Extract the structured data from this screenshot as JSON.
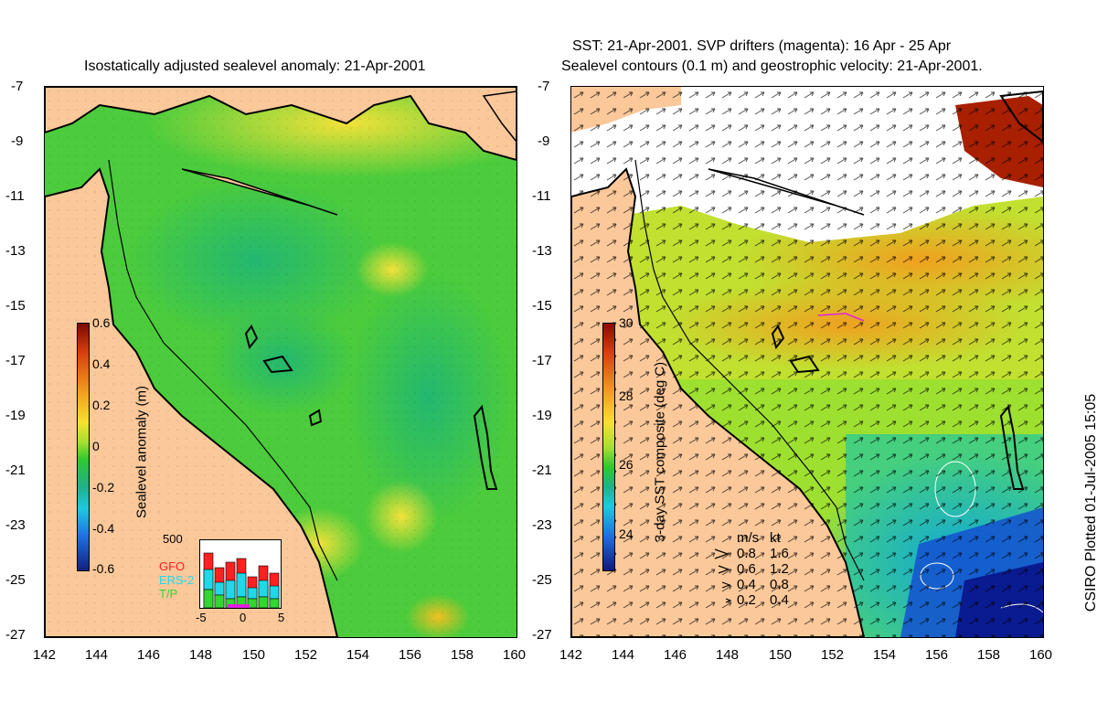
{
  "left_panel": {
    "title": "Isostatically adjusted sealevel anomaly: 21-Apr-2001",
    "y_ticks": [
      "-7",
      "-9",
      "-11",
      "-13",
      "-15",
      "-17",
      "-19",
      "-21",
      "-23",
      "-25",
      "-27"
    ],
    "x_ticks": [
      "142",
      "144",
      "146",
      "148",
      "150",
      "152",
      "154",
      "156",
      "158",
      "160"
    ],
    "colorbar": {
      "label": "Sealevel anomaly (m)",
      "ticks": [
        "0.6",
        "0.4",
        "0.2",
        "0",
        "-0.2",
        "-0.4",
        "-0.6"
      ]
    },
    "inset": {
      "max_label": "500",
      "x_ticks": [
        "-5",
        "0",
        "5"
      ],
      "satellites": [
        {
          "name": "GFO",
          "color": "#ff2020"
        },
        {
          "name": "ERS-2",
          "color": "#20d8e8"
        },
        {
          "name": "T/P",
          "color": "#30d830"
        }
      ]
    }
  },
  "right_panel": {
    "title_line1": "SST: 21-Apr-2001. SVP drifters (magenta): 16 Apr - 25 Apr",
    "title_line2": "Sealevel contours (0.1 m) and geostrophic velocity: 21-Apr-2001.",
    "y_ticks": [
      "-7",
      "-9",
      "-11",
      "-13",
      "-15",
      "-17",
      "-19",
      "-21",
      "-23",
      "-25",
      "-27"
    ],
    "x_ticks": [
      "142",
      "144",
      "146",
      "148",
      "150",
      "152",
      "154",
      "156",
      "158",
      "160"
    ],
    "colorbar": {
      "label": "3-day SST composite (deg C)",
      "ticks": [
        "30",
        "28",
        "26",
        "24"
      ]
    },
    "velocity_key": {
      "header_ms": "m/s",
      "header_kt": "kt",
      "rows": [
        {
          "ms": "0.8",
          "kt": "1.6"
        },
        {
          "ms": "0.6",
          "kt": "1.2"
        },
        {
          "ms": "0.4",
          "kt": "0.8"
        },
        {
          "ms": "0.2",
          "kt": "0.4"
        }
      ]
    }
  },
  "credit": "CSIRO Plotted 01-Jul-2005 15:05",
  "colors": {
    "land": "#fbc89a",
    "coast": "#000000"
  }
}
